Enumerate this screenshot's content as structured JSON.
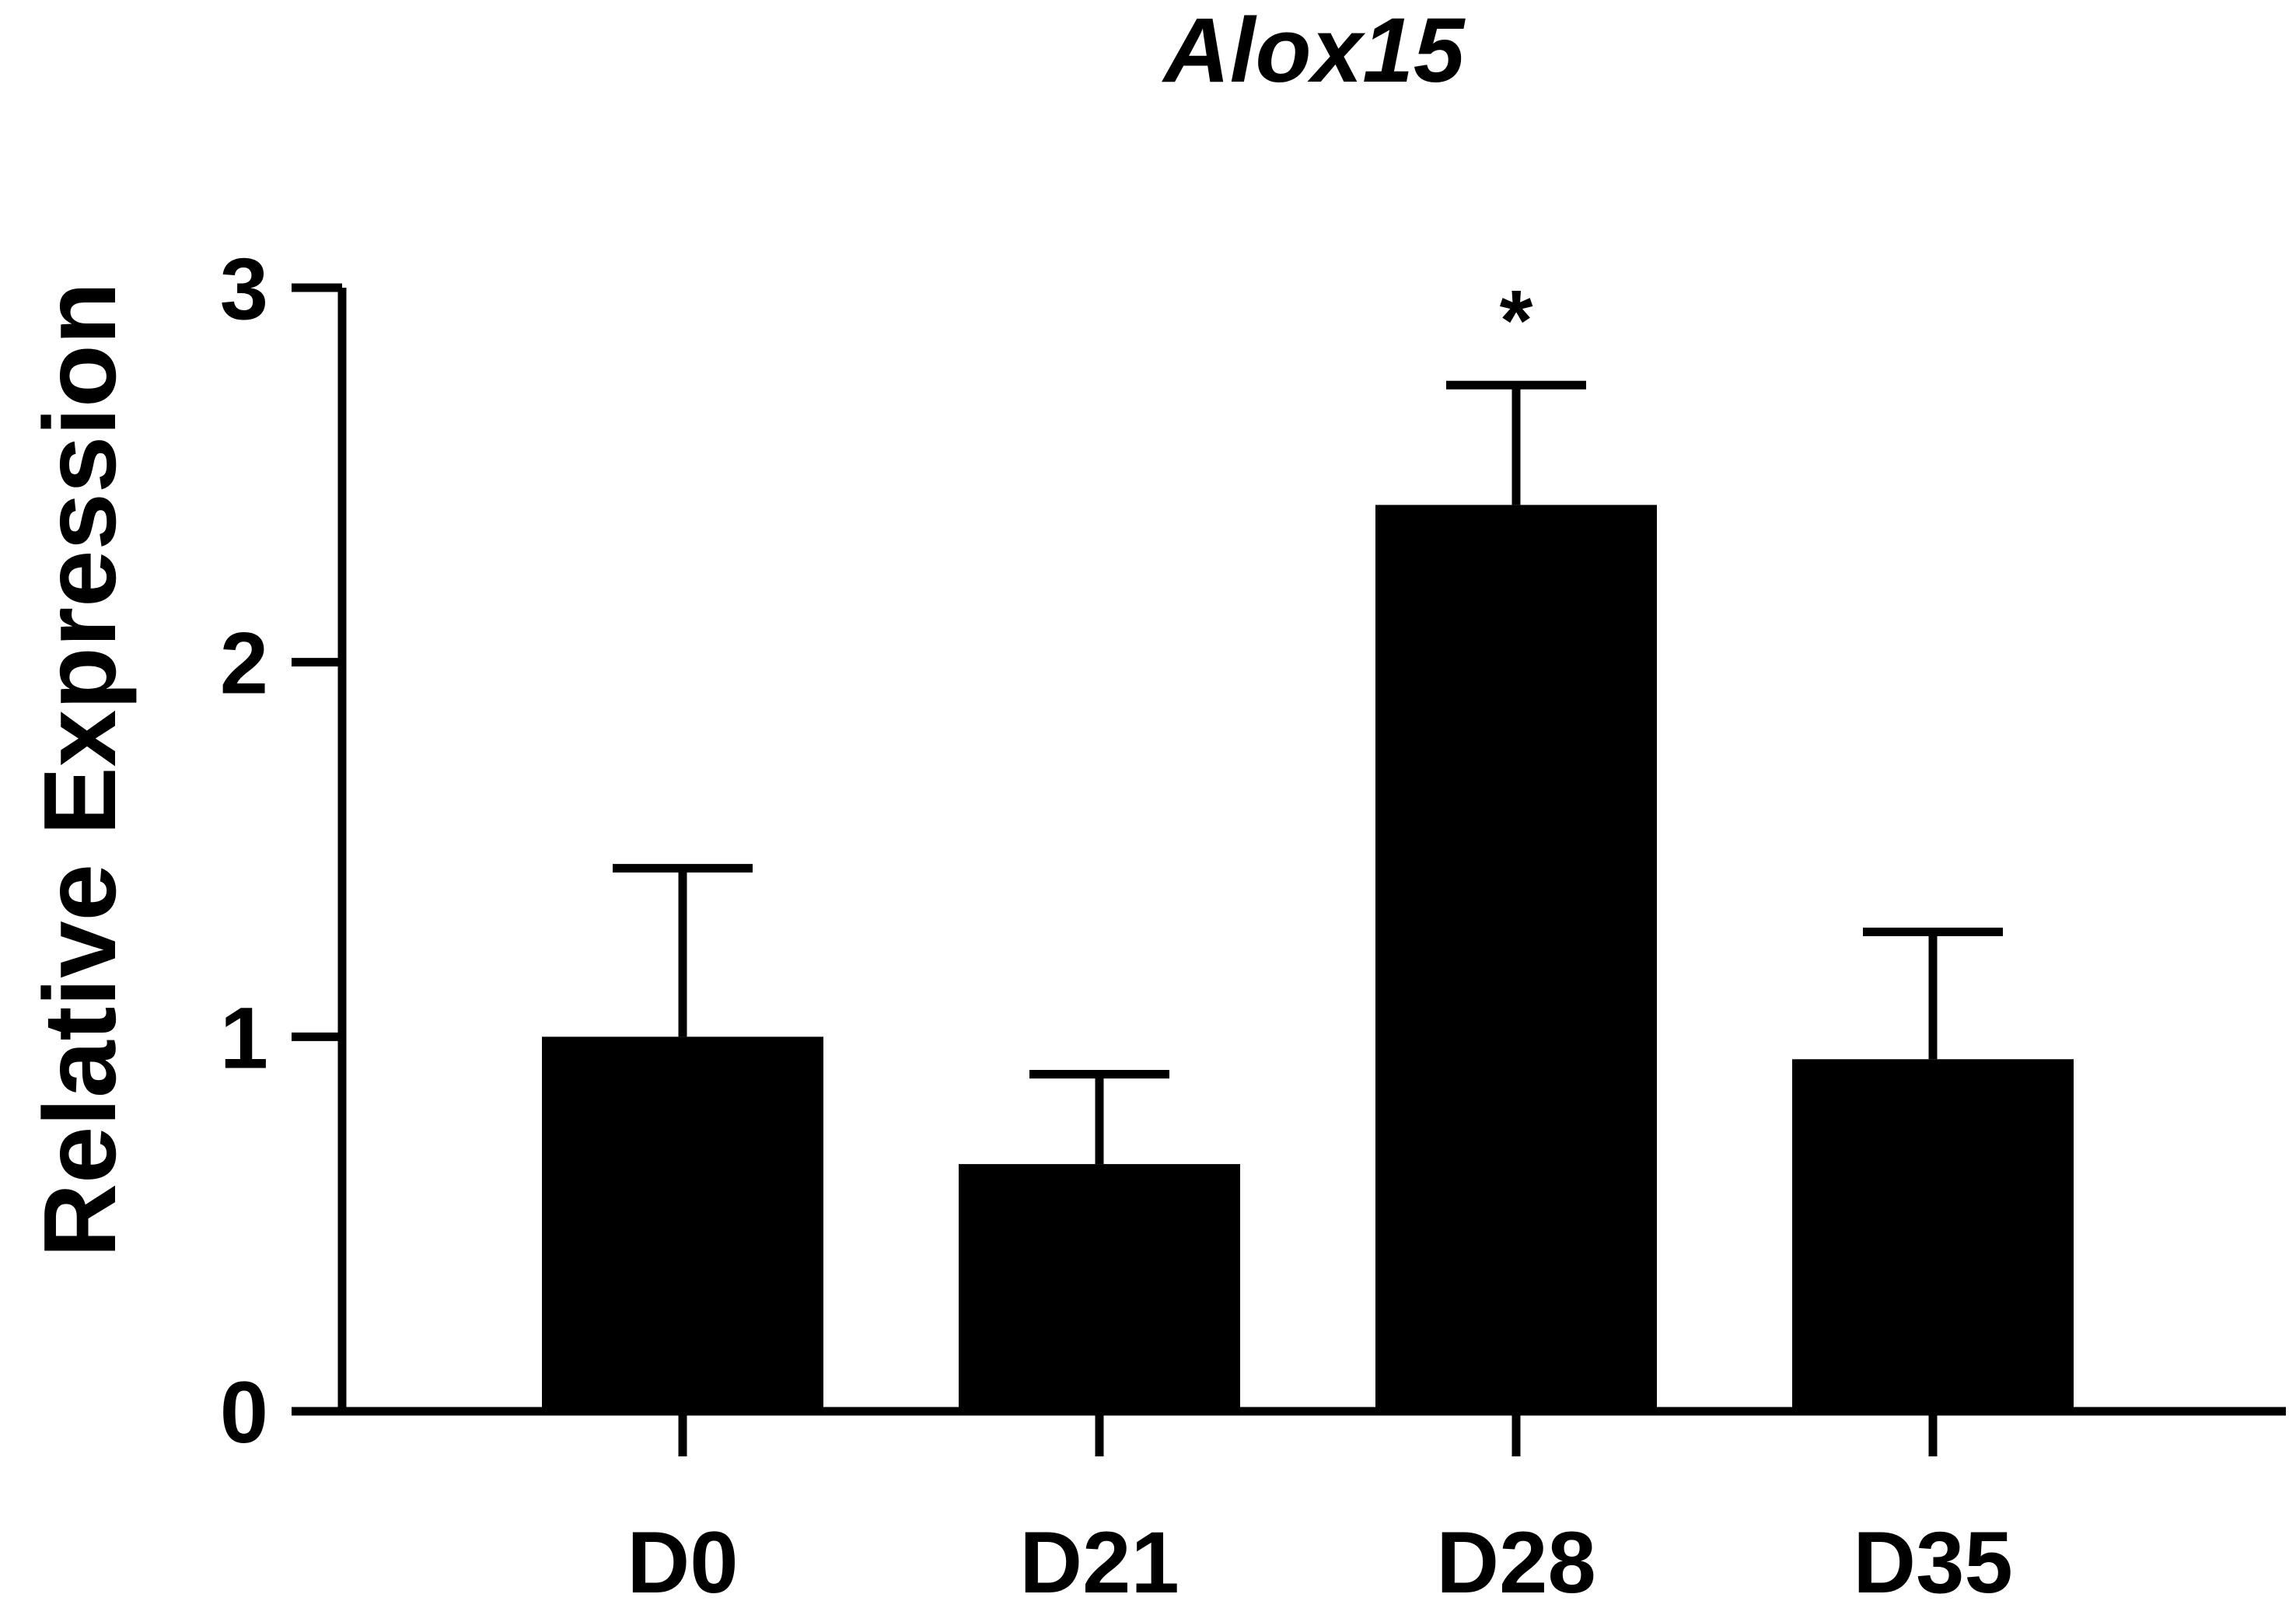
{
  "chart_data": {
    "type": "bar",
    "title": "Alox15",
    "xlabel": "",
    "ylabel": "Relative Expression",
    "categories": [
      "D0",
      "D21",
      "D28",
      "D35"
    ],
    "values": [
      1.0,
      0.66,
      2.42,
      0.94
    ],
    "error": [
      0.45,
      0.24,
      0.32,
      0.34
    ],
    "annotations": [
      "",
      "",
      "*",
      ""
    ],
    "ylim": [
      0,
      3
    ],
    "yticks": [
      0,
      1,
      2,
      3
    ],
    "ytick_labels": [
      "0",
      "1",
      "2",
      "3"
    ],
    "grid": false,
    "legend": "none",
    "bar_color": "#000000"
  }
}
